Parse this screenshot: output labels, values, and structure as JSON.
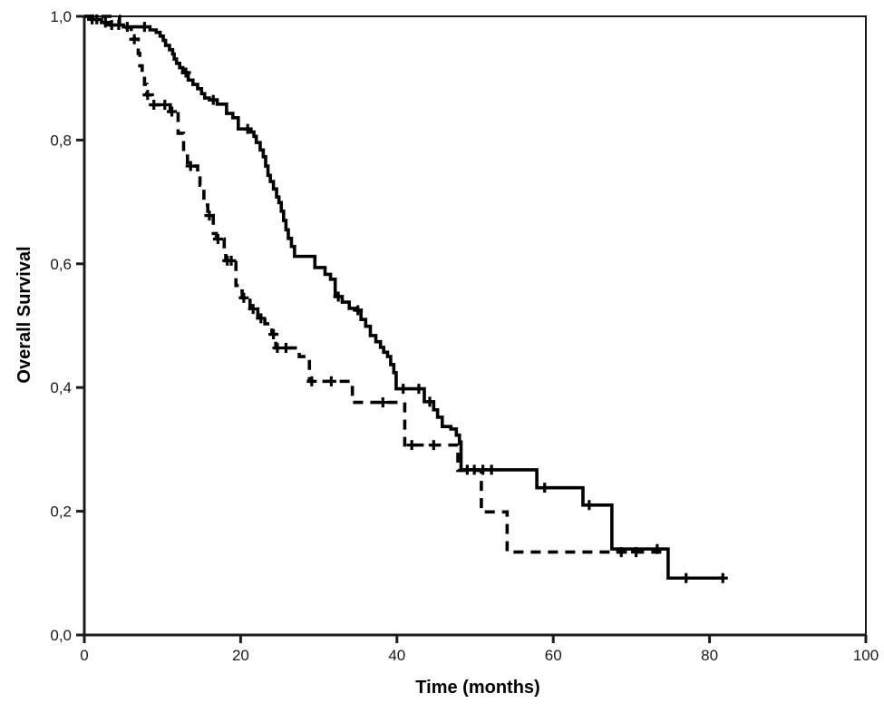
{
  "chart_data": {
    "type": "line",
    "subtype": "kaplan-meier-step",
    "title": "",
    "xlabel": "Time (months)",
    "ylabel": "Overall Survival",
    "xlim": [
      0,
      100
    ],
    "ylim": [
      0.0,
      1.0
    ],
    "grid": false,
    "legend_position": "none",
    "framed_plot_area": true,
    "background": "#ffffff",
    "axis_color": "#1c1c1c",
    "line_color": "#000000",
    "decimal_separator": ",",
    "x_ticks": [
      {
        "value": 0,
        "label": "0"
      },
      {
        "value": 20,
        "label": "20"
      },
      {
        "value": 40,
        "label": "40"
      },
      {
        "value": 60,
        "label": "60"
      },
      {
        "value": 80,
        "label": "80"
      },
      {
        "value": 100,
        "label": "100"
      }
    ],
    "y_ticks": [
      {
        "value": 0.0,
        "label": "0,0"
      },
      {
        "value": 0.2,
        "label": "0,2"
      },
      {
        "value": 0.4,
        "label": "0,4"
      },
      {
        "value": 0.6,
        "label": "0,6"
      },
      {
        "value": 0.8,
        "label": "0,8"
      },
      {
        "value": 1.0,
        "label": "1,0"
      }
    ],
    "series": [
      {
        "name": "group-1-solid",
        "line_style": "solid",
        "color": "#000000",
        "end_month": 81.7,
        "steps": [
          [
            0,
            1.0
          ],
          [
            0.9,
            0.995
          ],
          [
            2.2,
            0.99
          ],
          [
            3.3,
            0.986
          ],
          [
            5.0,
            0.983
          ],
          [
            8.4,
            0.978
          ],
          [
            9.2,
            0.974
          ],
          [
            9.7,
            0.968
          ],
          [
            10.1,
            0.961
          ],
          [
            10.4,
            0.953
          ],
          [
            10.9,
            0.946
          ],
          [
            11.3,
            0.939
          ],
          [
            11.5,
            0.931
          ],
          [
            11.8,
            0.924
          ],
          [
            12.2,
            0.917
          ],
          [
            12.6,
            0.909
          ],
          [
            13.3,
            0.897
          ],
          [
            13.9,
            0.89
          ],
          [
            14.5,
            0.883
          ],
          [
            15.0,
            0.875
          ],
          [
            15.4,
            0.868
          ],
          [
            16.0,
            0.865
          ],
          [
            17.0,
            0.858
          ],
          [
            18.2,
            0.843
          ],
          [
            19.0,
            0.836
          ],
          [
            19.7,
            0.818
          ],
          [
            21.3,
            0.813
          ],
          [
            21.7,
            0.806
          ],
          [
            22.0,
            0.796
          ],
          [
            22.5,
            0.784
          ],
          [
            22.9,
            0.773
          ],
          [
            23.2,
            0.758
          ],
          [
            23.5,
            0.743
          ],
          [
            23.8,
            0.733
          ],
          [
            24.2,
            0.721
          ],
          [
            24.6,
            0.708
          ],
          [
            24.9,
            0.699
          ],
          [
            25.2,
            0.685
          ],
          [
            25.5,
            0.67
          ],
          [
            25.8,
            0.655
          ],
          [
            26.1,
            0.641
          ],
          [
            26.5,
            0.628
          ],
          [
            26.9,
            0.612
          ],
          [
            29.5,
            0.594
          ],
          [
            30.8,
            0.583
          ],
          [
            31.5,
            0.575
          ],
          [
            32.1,
            0.547
          ],
          [
            33.0,
            0.538
          ],
          [
            33.9,
            0.528
          ],
          [
            34.8,
            0.525
          ],
          [
            35.4,
            0.51
          ],
          [
            36.0,
            0.499
          ],
          [
            36.6,
            0.484
          ],
          [
            37.3,
            0.474
          ],
          [
            37.9,
            0.465
          ],
          [
            38.3,
            0.457
          ],
          [
            38.8,
            0.45
          ],
          [
            39.2,
            0.437
          ],
          [
            39.6,
            0.424
          ],
          [
            39.9,
            0.398
          ],
          [
            43.5,
            0.377
          ],
          [
            44.7,
            0.364
          ],
          [
            45.2,
            0.352
          ],
          [
            45.8,
            0.337
          ],
          [
            46.9,
            0.333
          ],
          [
            47.6,
            0.323
          ],
          [
            48.0,
            0.312
          ],
          [
            48.2,
            0.267
          ],
          [
            57.9,
            0.238
          ],
          [
            63.8,
            0.21
          ],
          [
            67.5,
            0.139
          ],
          [
            74.7,
            0.092
          ],
          [
            81.7,
            0.092
          ]
        ],
        "censor_marks": [
          [
            1.0,
            0.995
          ],
          [
            1.6,
            0.995
          ],
          [
            2.7,
            0.99
          ],
          [
            3.5,
            0.986
          ],
          [
            4.4,
            0.986
          ],
          [
            5.5,
            0.983
          ],
          [
            7.7,
            0.983
          ],
          [
            13.0,
            0.909
          ],
          [
            16.5,
            0.865
          ],
          [
            20.9,
            0.818
          ],
          [
            32.5,
            0.547
          ],
          [
            35.0,
            0.525
          ],
          [
            40.8,
            0.398
          ],
          [
            42.8,
            0.398
          ],
          [
            44.2,
            0.377
          ],
          [
            49.0,
            0.267
          ],
          [
            49.9,
            0.267
          ],
          [
            51.0,
            0.267
          ],
          [
            52.1,
            0.267
          ],
          [
            58.9,
            0.238
          ],
          [
            64.6,
            0.21
          ],
          [
            73.3,
            0.139
          ],
          [
            77.0,
            0.092
          ],
          [
            81.7,
            0.092
          ]
        ]
      },
      {
        "name": "group-2-dashed",
        "line_style": "dashed",
        "color": "#000000",
        "end_month": 74.2,
        "steps": [
          [
            0,
            1.0
          ],
          [
            4.5,
            0.982
          ],
          [
            6.0,
            0.963
          ],
          [
            6.9,
            0.94
          ],
          [
            7.1,
            0.92
          ],
          [
            7.4,
            0.905
          ],
          [
            7.7,
            0.89
          ],
          [
            8.0,
            0.873
          ],
          [
            8.7,
            0.857
          ],
          [
            11.0,
            0.846
          ],
          [
            12.0,
            0.811
          ],
          [
            12.7,
            0.78
          ],
          [
            13.2,
            0.758
          ],
          [
            14.5,
            0.747
          ],
          [
            14.8,
            0.727
          ],
          [
            15.3,
            0.695
          ],
          [
            15.8,
            0.678
          ],
          [
            16.5,
            0.649
          ],
          [
            16.9,
            0.64
          ],
          [
            17.9,
            0.62
          ],
          [
            18.1,
            0.605
          ],
          [
            19.4,
            0.565
          ],
          [
            19.9,
            0.556
          ],
          [
            20.2,
            0.545
          ],
          [
            21.2,
            0.527
          ],
          [
            22.2,
            0.512
          ],
          [
            23.1,
            0.503
          ],
          [
            24.0,
            0.486
          ],
          [
            24.5,
            0.464
          ],
          [
            27.5,
            0.45
          ],
          [
            28.8,
            0.41
          ],
          [
            34.3,
            0.376
          ],
          [
            41.0,
            0.307
          ],
          [
            47.8,
            0.266
          ],
          [
            50.8,
            0.199
          ],
          [
            54.1,
            0.134
          ],
          [
            74.2,
            0.134
          ]
        ],
        "censor_marks": [
          [
            6.4,
            0.963
          ],
          [
            8.1,
            0.873
          ],
          [
            8.9,
            0.857
          ],
          [
            10.3,
            0.857
          ],
          [
            11.2,
            0.846
          ],
          [
            13.6,
            0.758
          ],
          [
            16.0,
            0.678
          ],
          [
            17.1,
            0.64
          ],
          [
            18.3,
            0.605
          ],
          [
            18.8,
            0.605
          ],
          [
            20.4,
            0.545
          ],
          [
            21.6,
            0.527
          ],
          [
            22.6,
            0.512
          ],
          [
            24.2,
            0.486
          ],
          [
            24.7,
            0.464
          ],
          [
            25.8,
            0.464
          ],
          [
            29.1,
            0.41
          ],
          [
            31.6,
            0.41
          ],
          [
            38.2,
            0.376
          ],
          [
            41.9,
            0.307
          ],
          [
            44.7,
            0.307
          ],
          [
            68.7,
            0.134
          ],
          [
            70.6,
            0.134
          ]
        ]
      }
    ]
  }
}
